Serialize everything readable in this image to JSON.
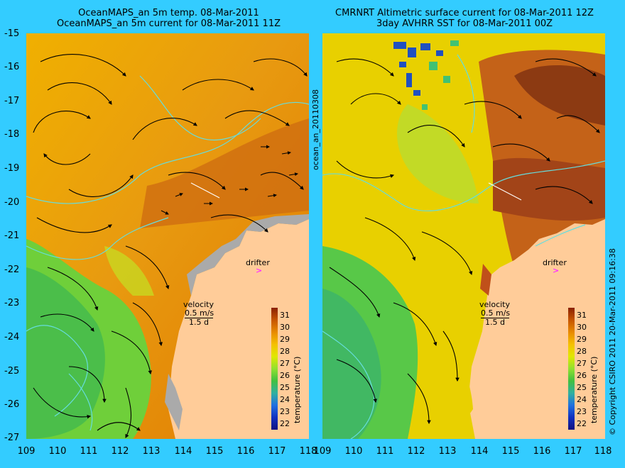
{
  "panels": [
    {
      "title1": "OceanMAPS_an 5m temp. 08-Mar-2011",
      "title2": "OceanMAPS_an 5m current for 08-Mar-2011 11Z"
    },
    {
      "title1": "CMRNRT Altimetric surface current for 08-Mar-2011 12Z",
      "title2": "3day AVHRR SST for 08-Mar-2011 00Z"
    }
  ],
  "lat_labels": [
    "-15",
    "-16",
    "-17",
    "-18",
    "-19",
    "-20",
    "-21",
    "-22",
    "-23",
    "-24",
    "-25",
    "-26",
    "-27"
  ],
  "lon_labels": [
    "109",
    "110",
    "111",
    "112",
    "113",
    "114",
    "115",
    "116",
    "117",
    "118"
  ],
  "middle_vertical_label": "ocean_an_20110308",
  "right_vertical_label": "© Copyright CSIRO 2011   20-Mar-2011 09:16:38",
  "drifter_label": "drifter",
  "velocity": {
    "title": "velocity",
    "speed": "0.5 m/s",
    "days": "1.5 d"
  },
  "colorbar": {
    "title": "temperature (°C)",
    "ticks": [
      "31",
      "30",
      "29",
      "28",
      "27",
      "26",
      "25",
      "24",
      "23",
      "22"
    ],
    "colors": [
      "#8a2000",
      "#c65500",
      "#e88a00",
      "#f5c000",
      "#e0e800",
      "#90e030",
      "#40c040",
      "#30b0a0",
      "#2070e0",
      "#1030c0",
      "#101080"
    ]
  },
  "colors": {
    "background": "#33ccff",
    "land": "#ffcc99",
    "coast": "#aaaaaa",
    "drifter_marker": "#ff33ff",
    "contour": "#66dddd"
  }
}
